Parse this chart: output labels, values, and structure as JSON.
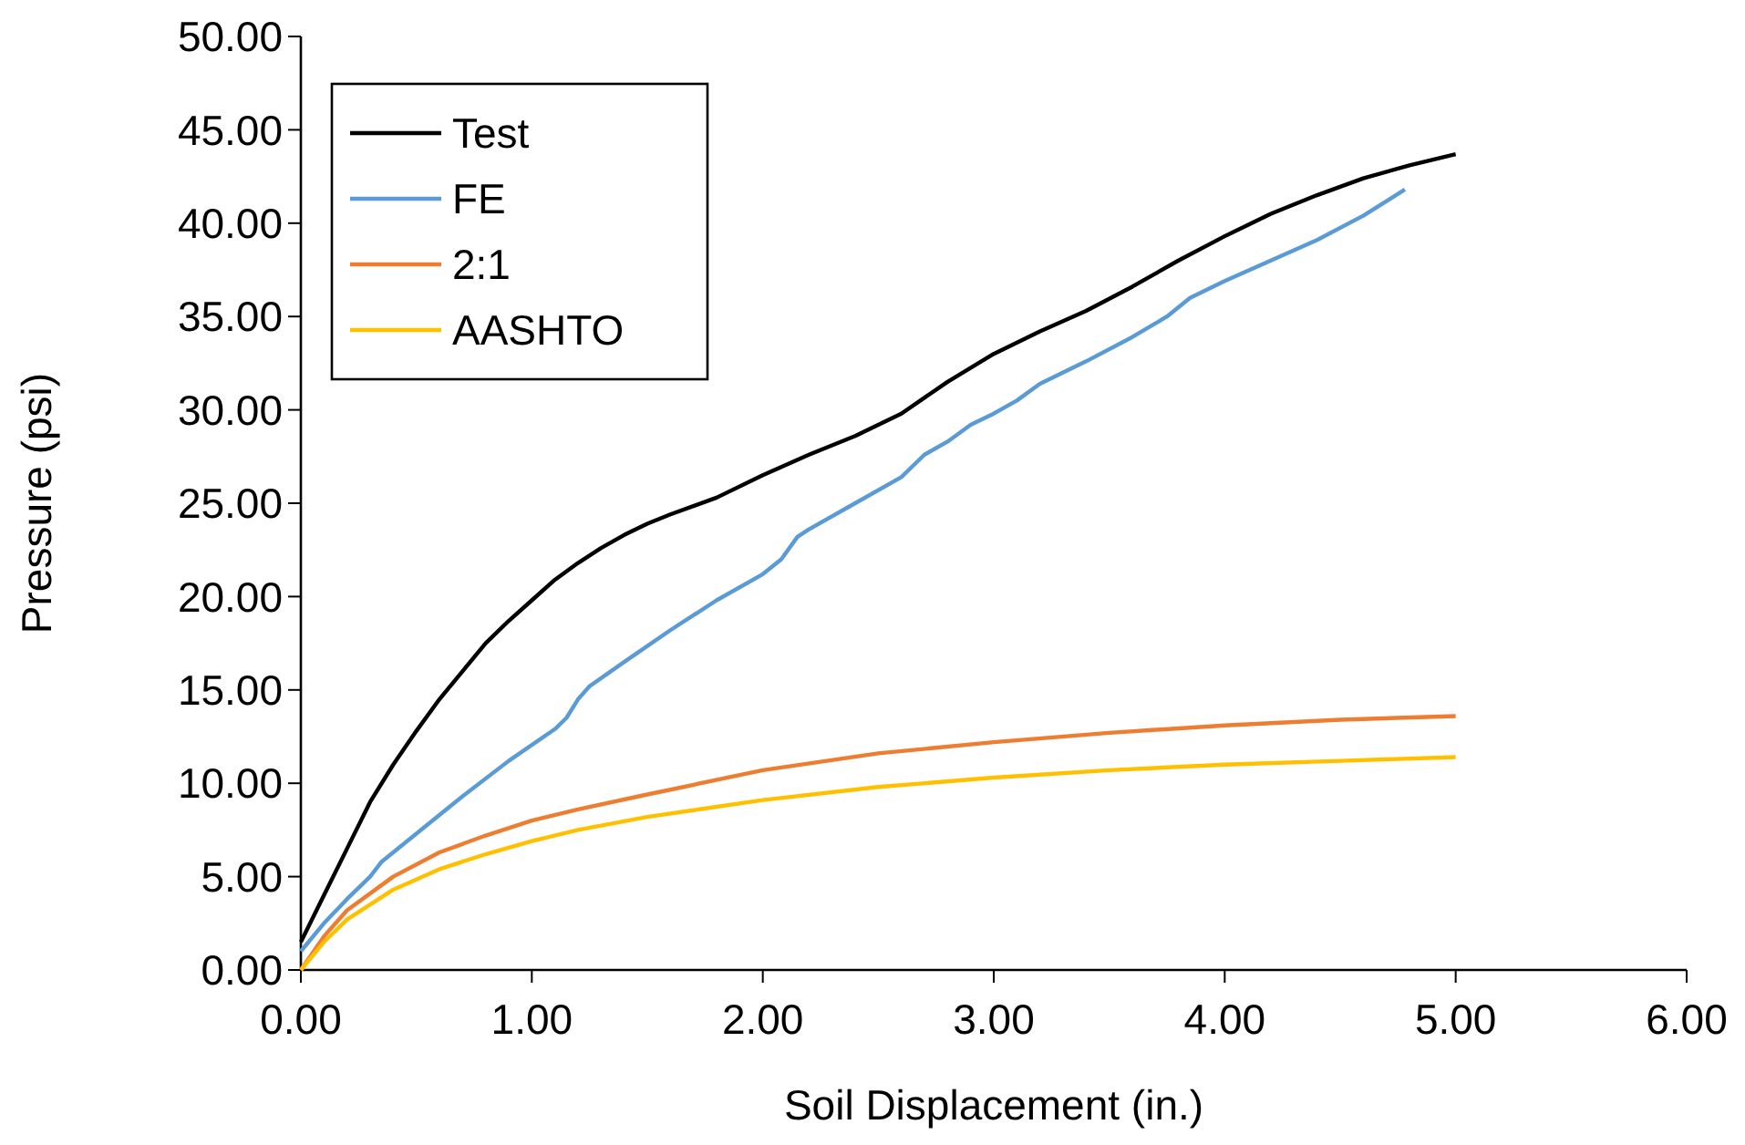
{
  "chart_data": {
    "type": "line",
    "xlabel": "Soil Displacement (in.)",
    "ylabel": "Pressure (psi)",
    "xlim": [
      0,
      6
    ],
    "ylim": [
      0,
      50
    ],
    "xticks": [
      {
        "value": 0,
        "label": "0.00"
      },
      {
        "value": 1,
        "label": "1.00"
      },
      {
        "value": 2,
        "label": "2.00"
      },
      {
        "value": 3,
        "label": "3.00"
      },
      {
        "value": 4,
        "label": "4.00"
      },
      {
        "value": 5,
        "label": "5.00"
      },
      {
        "value": 6,
        "label": "6.00"
      }
    ],
    "yticks": [
      {
        "value": 0,
        "label": "0.00"
      },
      {
        "value": 5,
        "label": "5.00"
      },
      {
        "value": 10,
        "label": "10.00"
      },
      {
        "value": 15,
        "label": "15.00"
      },
      {
        "value": 20,
        "label": "20.00"
      },
      {
        "value": 25,
        "label": "25.00"
      },
      {
        "value": 30,
        "label": "30.00"
      },
      {
        "value": 35,
        "label": "35.00"
      },
      {
        "value": 40,
        "label": "40.00"
      },
      {
        "value": 45,
        "label": "45.00"
      },
      {
        "value": 50,
        "label": "50.00"
      }
    ],
    "grid": false,
    "legend": "top left",
    "marker": "none",
    "line_style": "solid",
    "series": [
      {
        "name": "Test",
        "color": "#000000",
        "x": [
          0,
          0.1,
          0.2,
          0.3,
          0.4,
          0.5,
          0.6,
          0.7,
          0.8,
          0.9,
          1.0,
          1.1,
          1.2,
          1.3,
          1.4,
          1.5,
          1.6,
          1.8,
          2.0,
          2.2,
          2.4,
          2.6,
          2.8,
          3.0,
          3.2,
          3.4,
          3.6,
          3.8,
          4.0,
          4.2,
          4.4,
          4.6,
          4.8,
          5.0
        ],
        "values": [
          1.5,
          4,
          6.5,
          9,
          11,
          12.8,
          14.5,
          16,
          17.5,
          18.7,
          19.8,
          20.9,
          21.8,
          22.6,
          23.3,
          23.9,
          24.4,
          25.3,
          26.5,
          27.6,
          28.6,
          29.8,
          31.5,
          33.0,
          34.2,
          35.3,
          36.6,
          38.0,
          39.3,
          40.5,
          41.5,
          42.4,
          43.1,
          43.7
        ]
      },
      {
        "name": "FE",
        "color": "#5b9bd5",
        "x": [
          0,
          0.1,
          0.2,
          0.3,
          0.35,
          0.5,
          0.7,
          0.9,
          1.1,
          1.15,
          1.2,
          1.25,
          1.4,
          1.6,
          1.8,
          2.0,
          2.08,
          2.15,
          2.2,
          2.4,
          2.6,
          2.65,
          2.7,
          2.8,
          2.9,
          3.0,
          3.1,
          3.2,
          3.4,
          3.6,
          3.75,
          3.85,
          4.0,
          4.2,
          4.4,
          4.6,
          4.78
        ],
        "values": [
          1,
          2.5,
          3.8,
          5.0,
          5.8,
          7.3,
          9.3,
          11.2,
          12.9,
          13.5,
          14.5,
          15.2,
          16.5,
          18.2,
          19.8,
          21.2,
          22,
          23.2,
          23.6,
          25.0,
          26.4,
          27.0,
          27.6,
          28.3,
          29.2,
          29.8,
          30.5,
          31.4,
          32.6,
          33.9,
          35.0,
          36.0,
          36.9,
          38.0,
          39.1,
          40.4,
          41.8
        ]
      },
      {
        "name": "2:1",
        "color": "#ed7d31",
        "x": [
          0,
          0.1,
          0.2,
          0.4,
          0.6,
          0.8,
          1.0,
          1.2,
          1.5,
          2.0,
          2.5,
          3.0,
          3.5,
          4.0,
          4.5,
          5.0
        ],
        "values": [
          0,
          1.8,
          3.2,
          5.0,
          6.3,
          7.2,
          8.0,
          8.6,
          9.4,
          10.7,
          11.6,
          12.2,
          12.7,
          13.1,
          13.4,
          13.6
        ]
      },
      {
        "name": "AASHTO",
        "color": "#ffc000",
        "x": [
          0,
          0.1,
          0.2,
          0.4,
          0.6,
          0.8,
          1.0,
          1.2,
          1.5,
          2.0,
          2.5,
          3.0,
          3.5,
          4.0,
          4.5,
          5.0
        ],
        "values": [
          0,
          1.5,
          2.7,
          4.3,
          5.4,
          6.2,
          6.9,
          7.5,
          8.2,
          9.1,
          9.8,
          10.3,
          10.7,
          11.0,
          11.2,
          11.4
        ]
      }
    ]
  }
}
